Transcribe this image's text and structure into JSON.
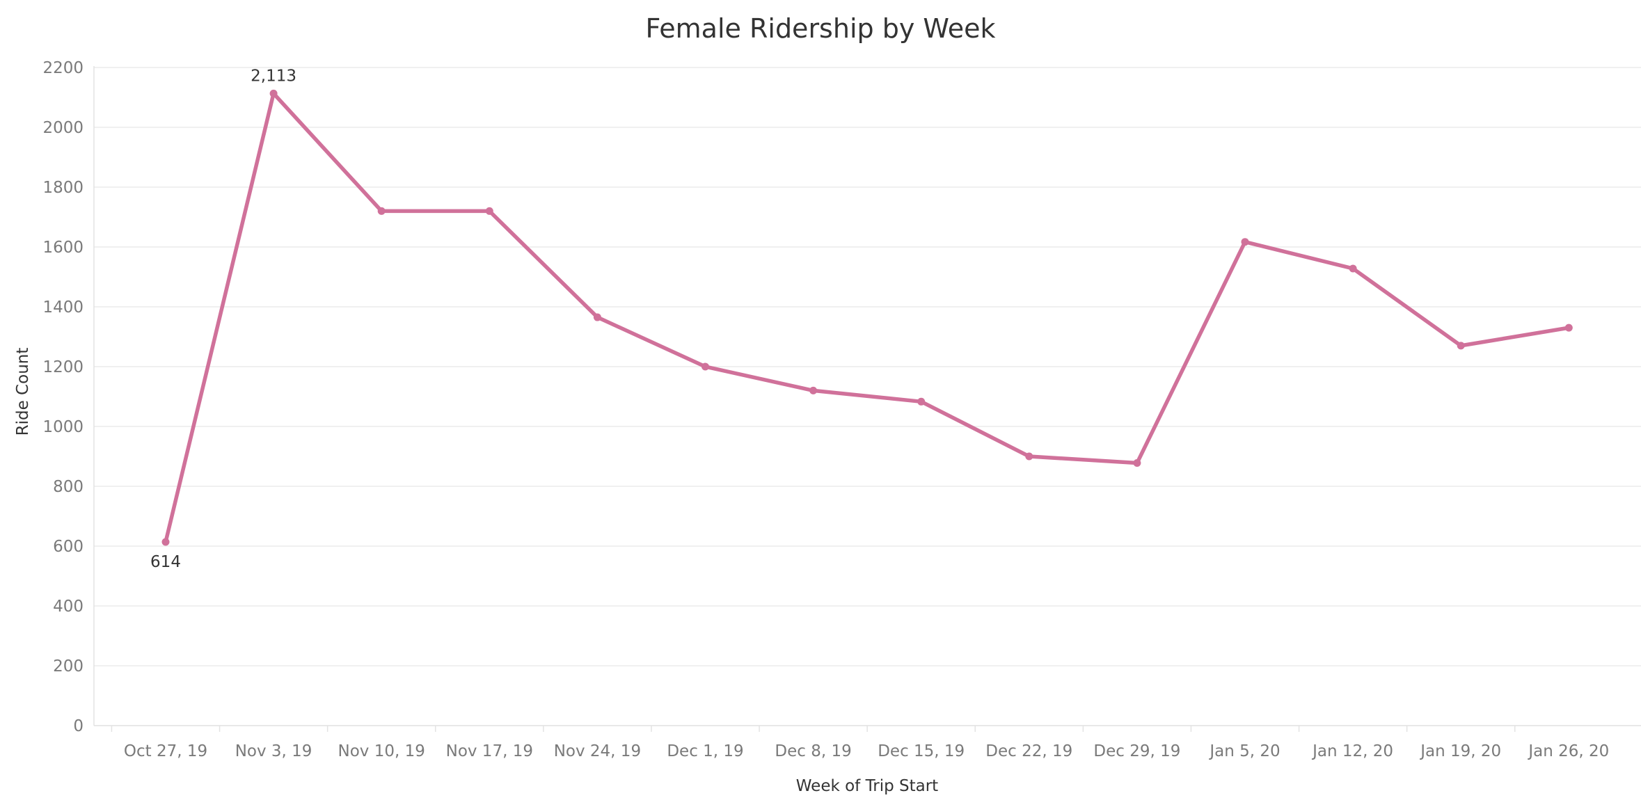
{
  "chart_data": {
    "type": "line",
    "title": "Female Ridership by Week",
    "xlabel": "Week of Trip Start",
    "ylabel": "Ride Count",
    "categories": [
      "Oct 27, 19",
      "Nov 3, 19",
      "Nov 10, 19",
      "Nov 17, 19",
      "Nov 24, 19",
      "Dec 1, 19",
      "Dec 8, 19",
      "Dec 15, 19",
      "Dec 22, 19",
      "Dec 29, 19",
      "Jan 5, 20",
      "Jan 12, 20",
      "Jan 19, 20",
      "Jan 26, 20"
    ],
    "series": [
      {
        "name": "",
        "color": "#d0719a",
        "values": [
          614,
          2113,
          1720,
          1720,
          1365,
          1200,
          1120,
          1083,
          900,
          878,
          1617,
          1528,
          1270,
          1330
        ]
      }
    ],
    "ylim": [
      0,
      2200
    ],
    "yticks": [
      0,
      200,
      400,
      600,
      800,
      1000,
      1200,
      1400,
      1600,
      1800,
      2000,
      2200
    ],
    "data_labels": [
      {
        "category": "Oct 27, 19",
        "text": "614",
        "position": "below"
      },
      {
        "category": "Nov 3, 19",
        "text": "2,113",
        "position": "above"
      }
    ],
    "grid": true,
    "legend": "none"
  }
}
